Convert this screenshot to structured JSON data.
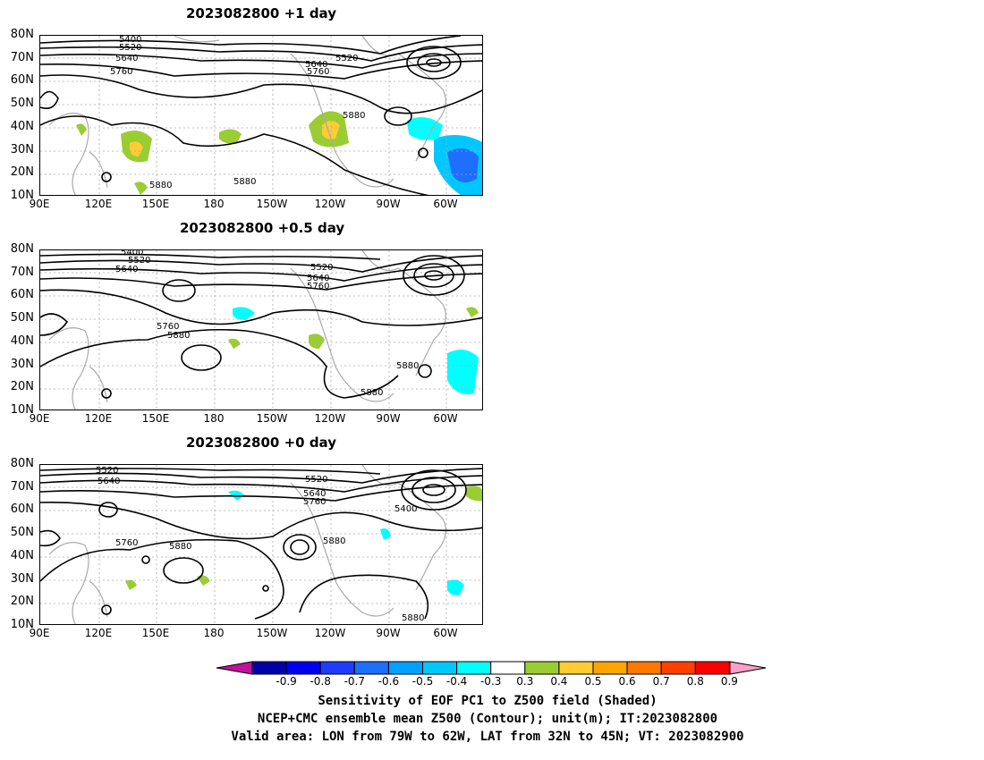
{
  "panels": [
    {
      "title": "2023082800  +1 day",
      "contour_labels": [
        "5400",
        "5520",
        "5640",
        "5760",
        "5640",
        "5760",
        "5520",
        "5880",
        "5880",
        "5880"
      ]
    },
    {
      "title": "2023082800  +0.5 day",
      "contour_labels": [
        "5400",
        "5520",
        "5640",
        "5520",
        "5640",
        "5760",
        "5760",
        "5880",
        "5880",
        "5880"
      ]
    },
    {
      "title": "2023082800  +0 day",
      "contour_labels": [
        "5520",
        "5640",
        "5520",
        "5640",
        "5760",
        "5760",
        "5880",
        "5880",
        "5400",
        "5880"
      ]
    }
  ],
  "lat_labels": [
    "80N",
    "70N",
    "60N",
    "50N",
    "40N",
    "30N",
    "20N",
    "10N"
  ],
  "lon_labels": [
    "90E",
    "120E",
    "150E",
    "180",
    "150W",
    "120W",
    "90W",
    "60W"
  ],
  "colorbar": {
    "ticks": [
      "-0.9",
      "-0.8",
      "-0.7",
      "-0.6",
      "-0.5",
      "-0.4",
      "-0.3",
      "0.3",
      "0.4",
      "0.5",
      "0.6",
      "0.7",
      "0.8",
      "0.9"
    ],
    "colors": [
      "#0000a8",
      "#0000f0",
      "#1e3cff",
      "#1e6eff",
      "#00a0ff",
      "#00c8ff",
      "#00ffff",
      "#ffffff",
      "#9acd32",
      "#ffcc33",
      "#ffa500",
      "#ff7800",
      "#ff4000",
      "#ff0000"
    ],
    "low_arrow_color": "#c0109c",
    "high_arrow_color": "#ff9ec8"
  },
  "captions": [
    "Sensitivity of EOF PC1 to Z500 field (Shaded)",
    "NCEP+CMC ensemble mean Z500 (Contour); unit(m); IT:2023082800",
    "Valid area: LON from 79W to 62W, LAT from 32N to 45N; VT: 2023082900"
  ]
}
